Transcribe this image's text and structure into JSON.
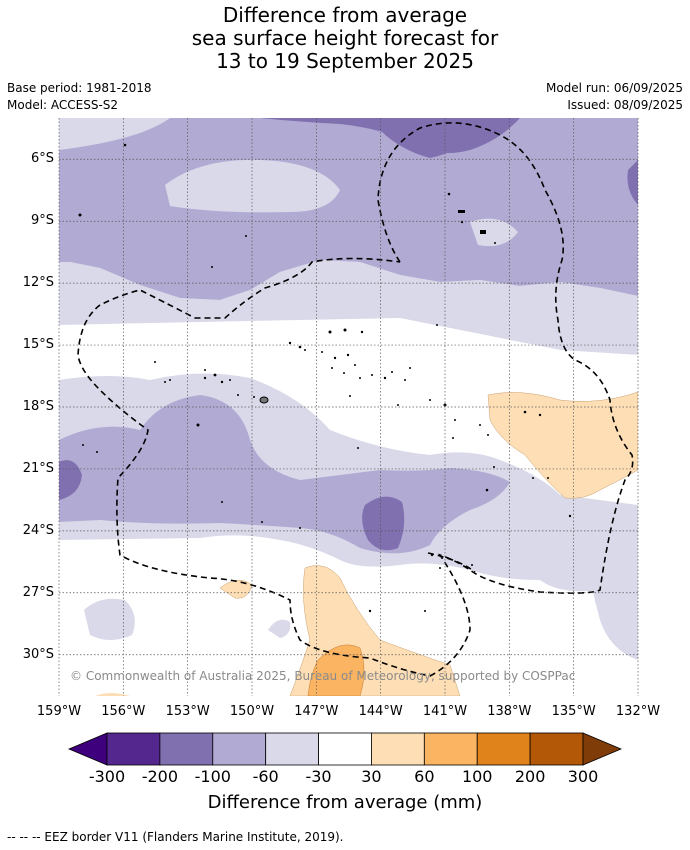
{
  "title_lines": [
    "Difference from average",
    "sea surface height forecast for",
    "13 to 19 September 2025"
  ],
  "meta": {
    "base_period": "Base period: 1981-2018",
    "model": "Model: ACCESS-S2",
    "model_run": "Model run: 06/09/2025",
    "issued": "Issued: 08/09/2025"
  },
  "map": {
    "lon_range": [
      -159,
      -132
    ],
    "lat_range": [
      -32,
      -4
    ],
    "lat_ticks": [
      "6°S",
      "9°S",
      "12°S",
      "15°S",
      "18°S",
      "21°S",
      "24°S",
      "27°S",
      "30°S"
    ],
    "lat_values": [
      -6,
      -9,
      -12,
      -15,
      -18,
      -21,
      -24,
      -27,
      -30
    ],
    "lon_ticks": [
      "159°W",
      "156°W",
      "153°W",
      "150°W",
      "147°W",
      "144°W",
      "141°W",
      "138°W",
      "135°W",
      "132°W"
    ],
    "lon_values": [
      -159,
      -156,
      -153,
      -150,
      -147,
      -144,
      -141,
      -138,
      -135,
      -132
    ],
    "copyright": "© Commonwealth of Australia 2025, Bureau of Meteorology, supported by COSPPac"
  },
  "colorbar": {
    "ticks": [
      "-300",
      "-200",
      "-100",
      "-60",
      "-30",
      "30",
      "60",
      "100",
      "200",
      "300"
    ],
    "colors": [
      "#3f007d",
      "#54278f",
      "#8070b0",
      "#b1abd3",
      "#d9d9ea",
      "#ffffff",
      "#fedfb5",
      "#fbb462",
      "#e0831a",
      "#b35806",
      "#7f3b08"
    ],
    "title": "Difference from average (mm)"
  },
  "footnote": "--  --  -- EEZ border V11 (Flanders Marine Institute, 2019)."
}
